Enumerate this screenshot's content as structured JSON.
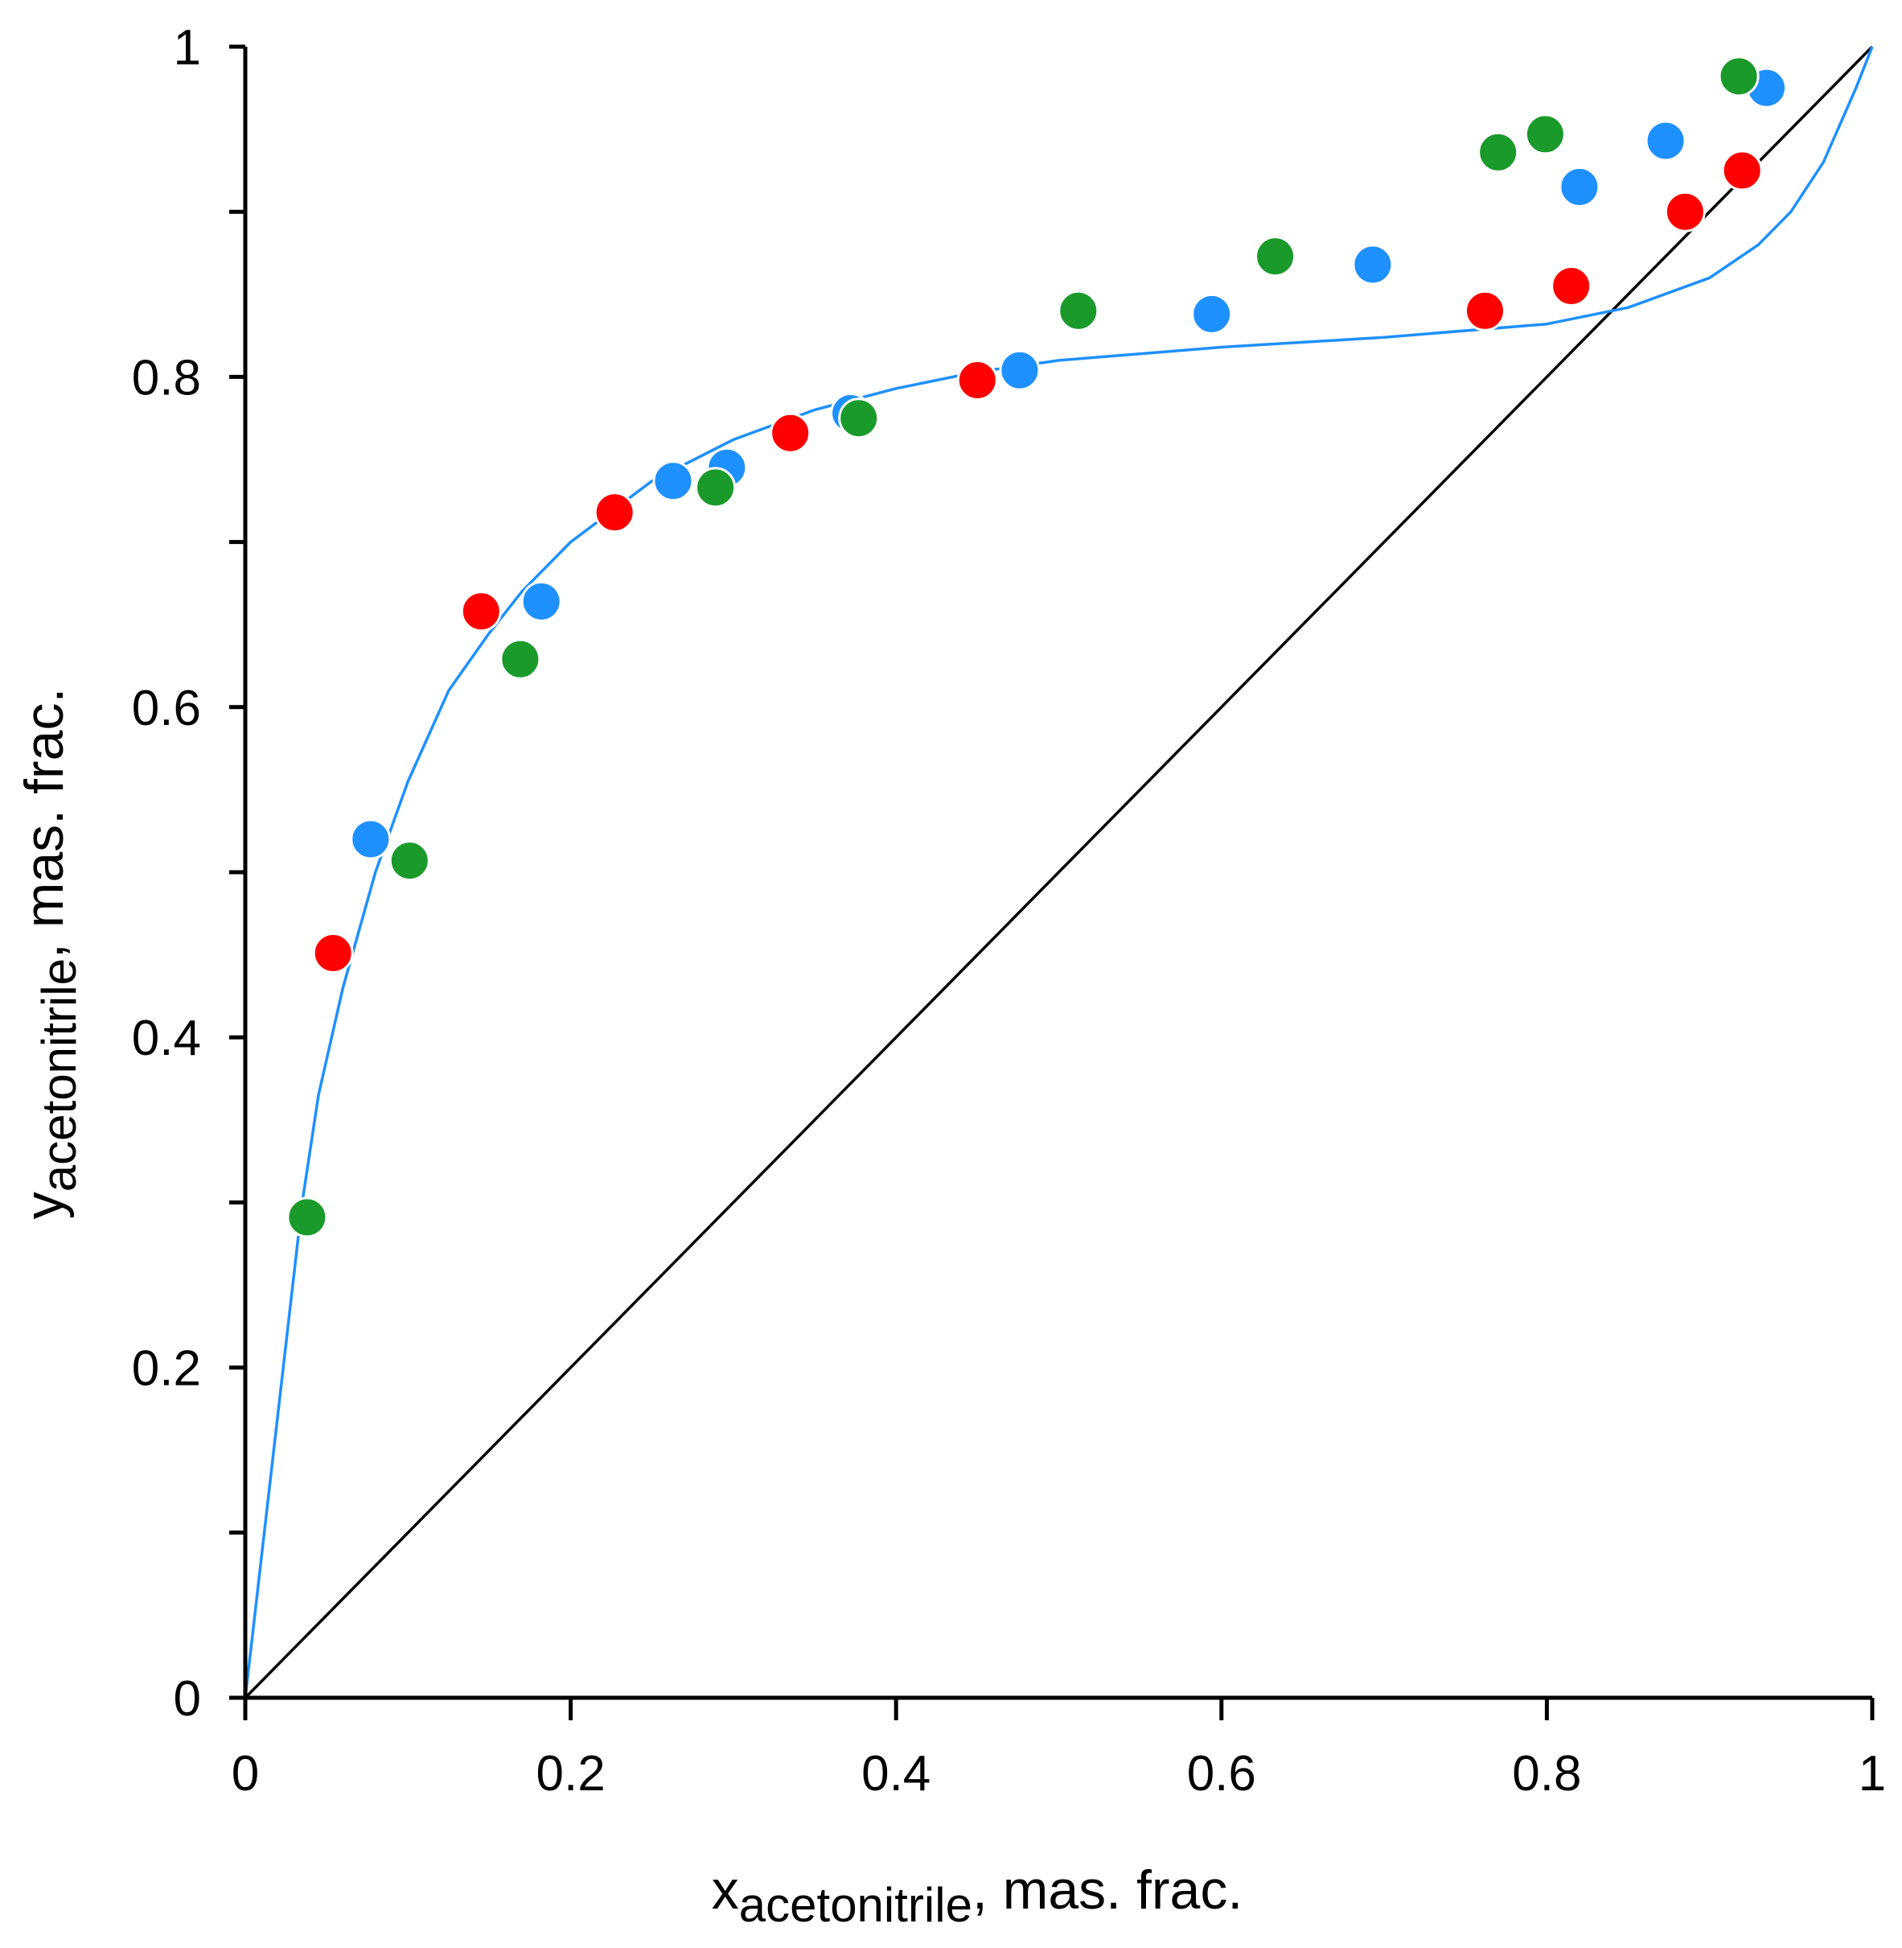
{
  "chart_data": {
    "type": "scatter",
    "xlabel": {
      "main": "x",
      "subscript": "acetonitrile",
      "suffix": ", mas. frac."
    },
    "ylabel": {
      "main": "y",
      "subscript": "acetonitrile",
      "suffix": ", mas. frac."
    },
    "xlim": [
      0,
      1
    ],
    "ylim": [
      0,
      1
    ],
    "x_ticks": [
      0,
      0.2,
      0.4,
      0.6,
      0.8,
      1
    ],
    "x_tick_labels": [
      "0",
      "0.2",
      "0.4",
      "0.6",
      "0.8",
      "1"
    ],
    "y_ticks": [
      0,
      0.2,
      0.4,
      0.6,
      0.8,
      1
    ],
    "y_tick_labels": [
      "0",
      "0.2",
      "0.4",
      "0.6",
      "0.8",
      "1"
    ],
    "y_minor_ticks": [
      0.1,
      0.3,
      0.5,
      0.7,
      0.9
    ],
    "grid": false,
    "lines": [
      {
        "name": "diagonal",
        "color": "#000000",
        "x": [
          0,
          1
        ],
        "y": [
          0,
          1
        ]
      },
      {
        "name": "model-curve",
        "color": "#1e90ff",
        "x": [
          0,
          0.035,
          0.045,
          0.06,
          0.08,
          0.1,
          0.125,
          0.15,
          0.17,
          0.2,
          0.25,
          0.3,
          0.35,
          0.4,
          0.45,
          0.5,
          0.6,
          0.7,
          0.8,
          0.85,
          0.9,
          0.93,
          0.95,
          0.97,
          0.99,
          1.0
        ],
        "y": [
          0,
          0.3,
          0.365,
          0.43,
          0.5,
          0.555,
          0.61,
          0.645,
          0.67,
          0.7,
          0.737,
          0.762,
          0.78,
          0.793,
          0.803,
          0.81,
          0.818,
          0.824,
          0.832,
          0.842,
          0.86,
          0.88,
          0.9,
          0.93,
          0.975,
          1.0
        ]
      }
    ],
    "series": [
      {
        "name": "red",
        "color": "#ff0000",
        "points": [
          [
            0.054,
            0.451
          ],
          [
            0.145,
            0.658
          ],
          [
            0.227,
            0.718
          ],
          [
            0.335,
            0.766
          ],
          [
            0.45,
            0.798
          ],
          [
            0.762,
            0.84
          ],
          [
            0.815,
            0.855
          ],
          [
            0.885,
            0.9
          ],
          [
            0.92,
            0.925
          ]
        ]
      },
      {
        "name": "blue",
        "color": "#1e90ff",
        "points": [
          [
            0.077,
            0.52
          ],
          [
            0.182,
            0.664
          ],
          [
            0.263,
            0.737
          ],
          [
            0.296,
            0.745
          ],
          [
            0.372,
            0.778
          ],
          [
            0.476,
            0.804
          ],
          [
            0.594,
            0.838
          ],
          [
            0.693,
            0.868
          ],
          [
            0.82,
            0.915
          ],
          [
            0.873,
            0.943
          ],
          [
            0.935,
            0.975
          ]
        ]
      },
      {
        "name": "green",
        "color": "#1a9a2a",
        "points": [
          [
            0.038,
            0.291
          ],
          [
            0.101,
            0.507
          ],
          [
            0.169,
            0.629
          ],
          [
            0.289,
            0.733
          ],
          [
            0.377,
            0.775
          ],
          [
            0.512,
            0.84
          ],
          [
            0.633,
            0.873
          ],
          [
            0.77,
            0.936
          ],
          [
            0.799,
            0.947
          ],
          [
            0.918,
            0.982
          ]
        ]
      }
    ]
  }
}
